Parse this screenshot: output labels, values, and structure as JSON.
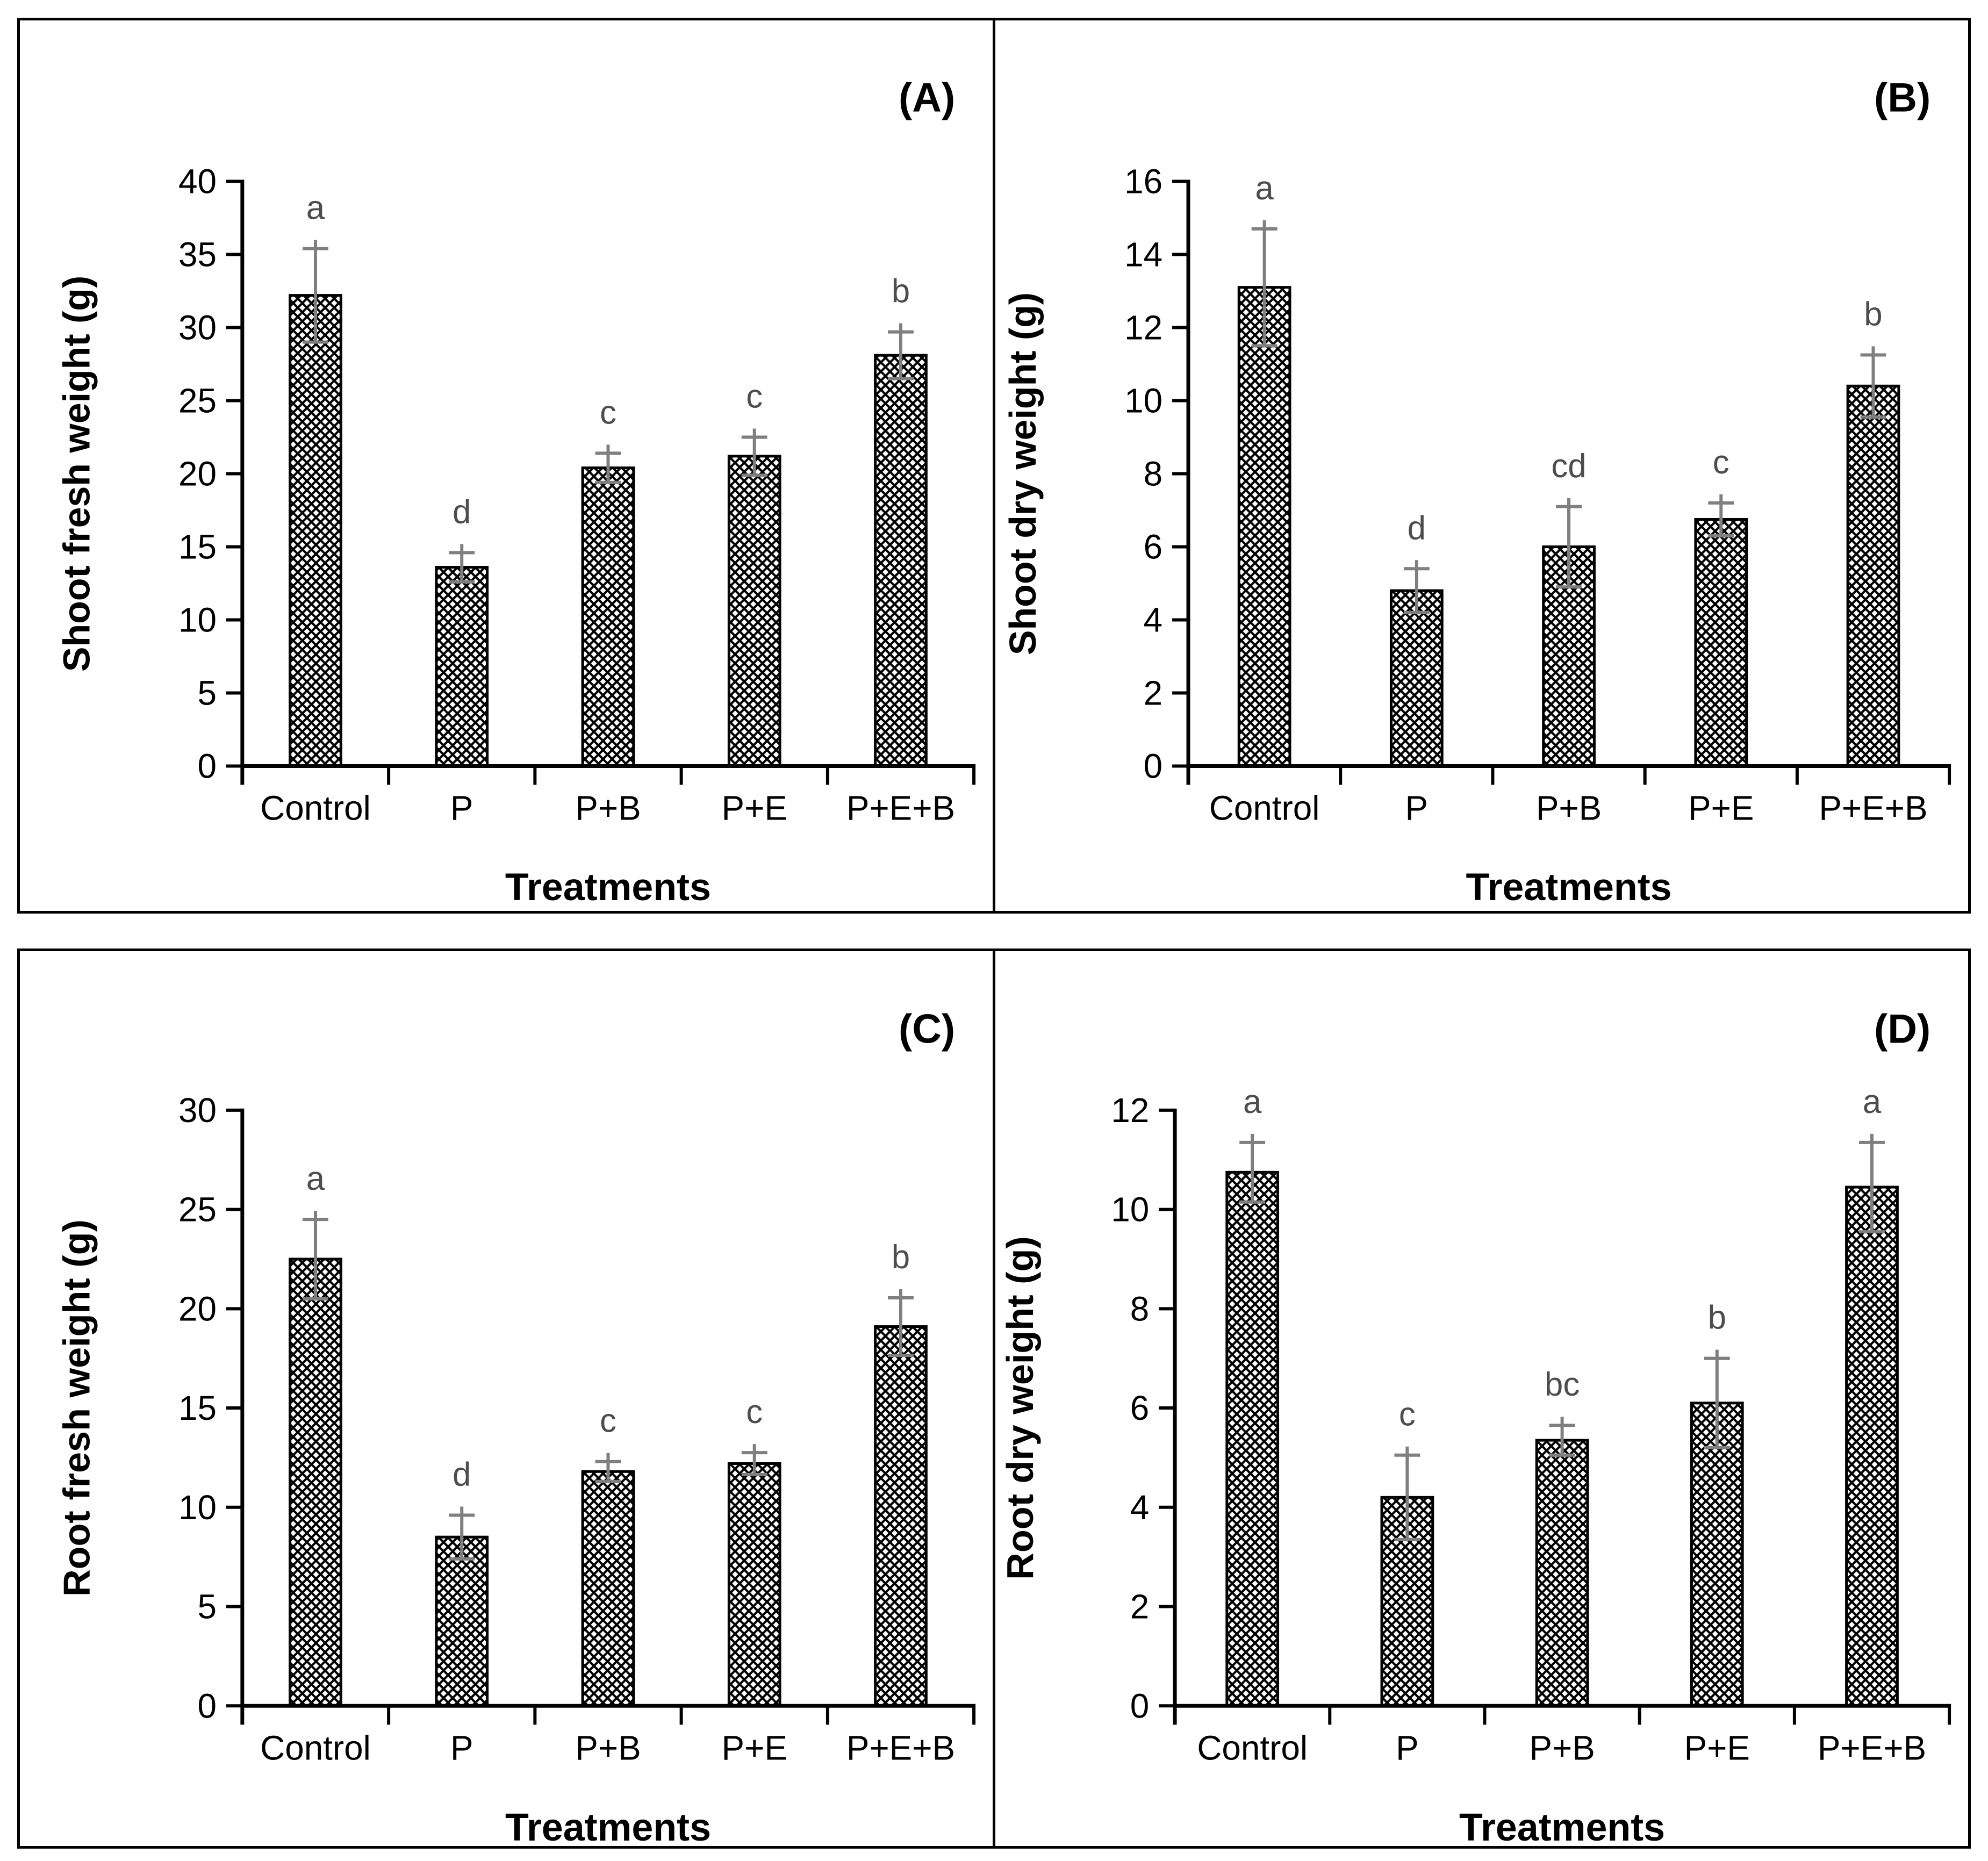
{
  "figure": {
    "background_color": "#ffffff",
    "frame_color": "#000000",
    "bar_fill_style": "black-white-crosshatch",
    "bar_outline_color": "#000000",
    "error_bar_color": "#7f7f7f",
    "sig_letter_color": "#4d4d4d",
    "text_color": "#000000"
  },
  "chart_data": [
    {
      "type": "bar",
      "panel_label": "(A)",
      "title": "",
      "xlabel": "Treatments",
      "ylabel": "Shoot fresh weight (g)",
      "categories": [
        "Control",
        "P",
        "P+B",
        "P+E",
        "P+E+B"
      ],
      "values": [
        32.2,
        13.6,
        20.4,
        21.2,
        28.1
      ],
      "errors": [
        3.2,
        1.0,
        1.0,
        1.3,
        1.6
      ],
      "sig_letters": [
        "a",
        "d",
        "c",
        "c",
        "b"
      ],
      "ylim": [
        0,
        40
      ],
      "ytick_step": 5,
      "ytick_labels": [
        "0",
        "5",
        "10",
        "15",
        "20",
        "25",
        "30",
        "35",
        "40"
      ],
      "grid": false,
      "legend": false
    },
    {
      "type": "bar",
      "panel_label": "(B)",
      "title": "",
      "xlabel": "Treatments",
      "ylabel": "Shoot dry weight (g)",
      "categories": [
        "Control",
        "P",
        "P+B",
        "P+E",
        "P+E+B"
      ],
      "values": [
        13.1,
        4.8,
        6.0,
        6.75,
        10.4
      ],
      "errors": [
        1.6,
        0.6,
        1.1,
        0.45,
        0.85
      ],
      "sig_letters": [
        "a",
        "d",
        "cd",
        "c",
        "b"
      ],
      "ylim": [
        0,
        16
      ],
      "ytick_step": 2,
      "ytick_labels": [
        "0",
        "2",
        "4",
        "6",
        "8",
        "10",
        "12",
        "14",
        "16"
      ],
      "grid": false,
      "legend": false
    },
    {
      "type": "bar",
      "panel_label": "(C)",
      "title": "",
      "xlabel": "Treatments",
      "ylabel": "Root fresh weight (g)",
      "categories": [
        "Control",
        "P",
        "P+B",
        "P+E",
        "P+E+B"
      ],
      "values": [
        22.5,
        8.5,
        11.8,
        12.2,
        19.1
      ],
      "errors": [
        2.0,
        1.1,
        0.5,
        0.55,
        1.45
      ],
      "sig_letters": [
        "a",
        "d",
        "c",
        "c",
        "b"
      ],
      "ylim": [
        0,
        30
      ],
      "ytick_step": 5,
      "ytick_labels": [
        "0",
        "5",
        "10",
        "15",
        "20",
        "25",
        "30"
      ],
      "grid": false,
      "legend": false
    },
    {
      "type": "bar",
      "panel_label": "(D)",
      "title": "",
      "xlabel": "Treatments",
      "ylabel": "Root dry weight (g)",
      "categories": [
        "Control",
        "P",
        "P+B",
        "P+E",
        "P+E+B"
      ],
      "values": [
        10.75,
        4.2,
        5.35,
        6.1,
        10.45
      ],
      "errors": [
        0.6,
        0.85,
        0.3,
        0.9,
        0.9
      ],
      "sig_letters": [
        "a",
        "c",
        "bc",
        "b",
        "a"
      ],
      "ylim": [
        0,
        12
      ],
      "ytick_step": 2,
      "ytick_labels": [
        "0",
        "2",
        "4",
        "6",
        "8",
        "10",
        "12"
      ],
      "grid": false,
      "legend": false
    }
  ]
}
